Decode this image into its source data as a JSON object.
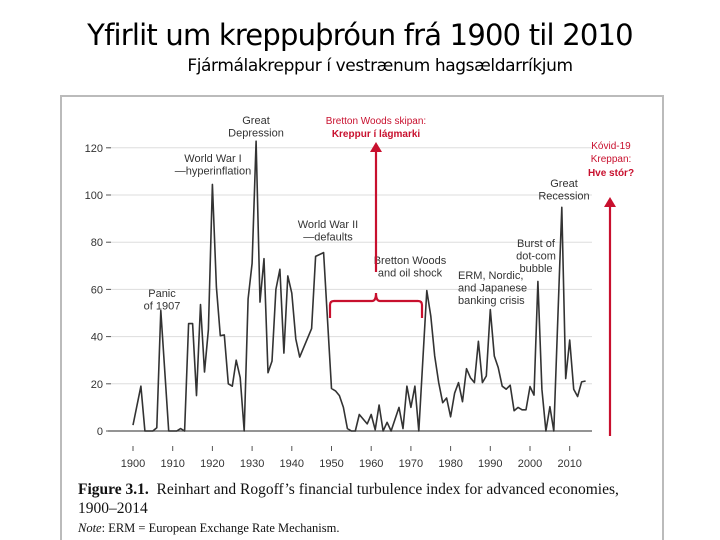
{
  "slide": {
    "title": "Yfirlit um kreppuþróun frá 1900 til 2010",
    "subtitle": "Fjármálakreppur í vestrænum hagsældarríkjum"
  },
  "caption": {
    "figure_label": "Figure 3.1.",
    "figure_text": "Reinhart and Rogoff’s financial turbulence index for advanced economies,",
    "figure_text_2": "1900–2014",
    "note_label": "Note",
    "note_text": ": ERM = European Exchange Rate Mechanism."
  },
  "red_annotations": {
    "color": "#c8102e",
    "bretton_line1": "Bretton Woods skipan:",
    "bretton_line2": "Kreppur í lágmarki",
    "covid_line1": "Kóvid-19",
    "covid_line2": "Kreppan:",
    "covid_line3": "Hve stór?"
  },
  "chart_data": {
    "type": "line",
    "title": "",
    "xlabel": "",
    "ylabel": "",
    "xlim": [
      1900,
      2014
    ],
    "ylim": [
      0,
      125
    ],
    "grid": true,
    "x_ticks": [
      "1900",
      "1910",
      "1920",
      "1930",
      "1940",
      "1950",
      "1960",
      "1970",
      "1980",
      "1990",
      "2000",
      "2010"
    ],
    "y_ticks": [
      "0",
      "20",
      "40",
      "60",
      "80",
      "100",
      "120"
    ],
    "line_color": "#333333",
    "series": [
      {
        "x": [
          1900,
          1902,
          1903,
          1905,
          1906,
          1907,
          1909,
          1911,
          1912,
          1913,
          1914,
          1915,
          1916,
          1917,
          1918,
          1919,
          1920,
          1921,
          1922,
          1923,
          1924,
          1925,
          1926,
          1927,
          1928,
          1929,
          1930,
          1931,
          1932,
          1933,
          1934,
          1935,
          1936,
          1937,
          1938,
          1939,
          1940,
          1941,
          1942,
          1945,
          1946,
          1948,
          1950,
          1951,
          1952,
          1953,
          1954,
          1955,
          1956,
          1957,
          1959,
          1960,
          1961,
          1962,
          1963,
          1964,
          1965,
          1967,
          1968,
          1969,
          1970,
          1971,
          1972,
          1974,
          1975,
          1976,
          1977,
          1978,
          1979,
          1980,
          1981,
          1982,
          1983,
          1984,
          1985,
          1986,
          1987,
          1988,
          1989,
          1990,
          1991,
          1992,
          1993,
          1994,
          1995,
          1996,
          1997,
          1998,
          1999,
          2000,
          2001,
          2002,
          2003,
          2004,
          2005,
          2006,
          2008,
          2009,
          2010,
          2011,
          2012,
          2013,
          2014
        ],
        "y": [
          2.5,
          19,
          0,
          0,
          1.4,
          51,
          0,
          0,
          1,
          0,
          45.5,
          45.5,
          15,
          53.6,
          25,
          43,
          104.5,
          61,
          40.4,
          40.7,
          20,
          19,
          30,
          22.6,
          0,
          56,
          71,
          122.8,
          54.6,
          73,
          24.7,
          29.6,
          60,
          68.5,
          33,
          65.7,
          58.4,
          39,
          31.3,
          43.4,
          74,
          75.6,
          18,
          17,
          15,
          10,
          1,
          0,
          0,
          7,
          3,
          7,
          0.5,
          11,
          0,
          3.7,
          0,
          10,
          1,
          19,
          10,
          19,
          0,
          59.5,
          48.7,
          31.8,
          20.5,
          12,
          14,
          6,
          16,
          20.5,
          12.4,
          26.4,
          22.6,
          20.5,
          38,
          20.5,
          23.3,
          51.5,
          31.8,
          26.9,
          19,
          17.7,
          19.4,
          8.6,
          10,
          9,
          9,
          18.8,
          15.2,
          63.4,
          17.7,
          0,
          10.3,
          0,
          94.8,
          22.2,
          38.5,
          17.7,
          14.6,
          20.8,
          21.2
        ]
      }
    ],
    "annotations": [
      {
        "lines": [
          "Panic",
          "of 1907"
        ]
      },
      {
        "lines": [
          "World War I",
          "—hyperinflation"
        ]
      },
      {
        "lines": [
          "Great",
          "Depression"
        ]
      },
      {
        "lines": [
          "World War II",
          "—defaults"
        ]
      },
      {
        "lines": [
          "Bretton Woods",
          "and oil shock"
        ]
      },
      {
        "lines": [
          "ERM, Nordic,",
          "and Japanese",
          "banking crisis"
        ]
      },
      {
        "lines": [
          "Burst of",
          "dot-com",
          "bubble"
        ]
      },
      {
        "lines": [
          "Great",
          "Recession"
        ]
      }
    ]
  }
}
